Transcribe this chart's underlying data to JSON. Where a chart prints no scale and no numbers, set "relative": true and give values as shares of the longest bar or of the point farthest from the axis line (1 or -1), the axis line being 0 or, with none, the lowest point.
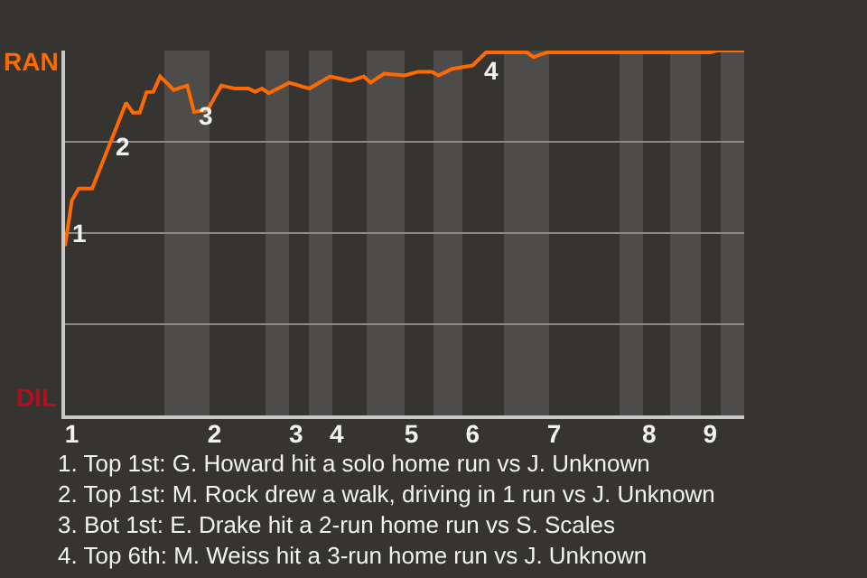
{
  "chart_data": {
    "type": "line",
    "relative": true,
    "categories": [
      null,
      "1",
      null,
      null,
      null,
      null,
      null,
      null,
      null,
      null,
      null,
      null,
      null,
      null,
      null,
      null,
      null,
      null,
      null,
      null,
      null,
      null,
      "2",
      null,
      null,
      null,
      null,
      null,
      null,
      null,
      null,
      null,
      null,
      null,
      "3",
      null,
      null,
      null,
      null,
      null,
      "4",
      null,
      null,
      null,
      null,
      null,
      null,
      null,
      null,
      null,
      null,
      "5",
      null,
      null,
      null,
      null,
      null,
      null,
      null,
      null,
      "6",
      null,
      null,
      null,
      null,
      null,
      null,
      null,
      null,
      null,
      null,
      null,
      "7",
      null,
      null,
      null,
      null,
      null,
      null,
      null,
      null,
      null,
      null,
      null,
      null,
      null,
      "8",
      null,
      null,
      null,
      null,
      null,
      null,
      null,
      null,
      "9",
      null,
      null,
      null,
      null,
      null
    ],
    "grid": "y",
    "legend": false,
    "marker": "none",
    "line_style": "solid",
    "series": [
      {
        "name": "RAN",
        "color": "#ff6a00",
        "values": [
          0.464,
          0.589,
          0.622,
          0.622,
          0.622,
          0.669,
          0.716,
          0.763,
          0.81,
          0.857,
          0.83,
          0.83,
          0.886,
          0.887,
          0.929,
          0.911,
          0.892,
          0.898,
          0.904,
          0.832,
          0.835,
          0.837,
          0.871,
          0.904,
          0.9,
          0.896,
          0.896,
          0.896,
          0.887,
          0.896,
          0.883,
          0.893,
          0.902,
          0.912,
          0.907,
          0.901,
          0.896,
          0.907,
          0.918,
          0.929,
          0.925,
          0.921,
          0.917,
          0.923,
          0.929,
          0.912,
          0.925,
          0.937,
          0.935,
          0.934,
          0.932,
          0.937,
          0.942,
          0.942,
          0.942,
          0.932,
          0.941,
          0.95,
          0.953,
          0.956,
          0.959,
          0.977,
          0.995,
          0.995,
          0.995,
          0.995,
          0.995,
          0.995,
          0.995,
          0.982,
          0.989,
          0.995,
          0.995,
          0.995,
          0.995,
          0.995,
          0.995,
          0.995,
          0.995,
          0.995,
          0.995,
          0.995,
          0.995,
          0.995,
          0.995,
          0.995,
          0.995,
          0.995,
          0.995,
          0.995,
          0.995,
          0.995,
          0.995,
          0.995,
          0.995,
          0.995,
          1,
          1,
          1,
          1,
          1
        ]
      }
    ],
    "annotations": [
      "DIL",
      "1",
      "2",
      "3",
      "4",
      "1. Top 1st: G. Howard hit a solo home run vs J. Unknown",
      "2. Top 1st: M. Rock drew a walk, driving in 1 run vs J. Unknown",
      "3. Bot 1st: E. Drake hit a 2-run home run vs S. Scales",
      "4. Top 6th: M. Weiss hit a 3-run home run vs J. Unknown"
    ]
  }
}
